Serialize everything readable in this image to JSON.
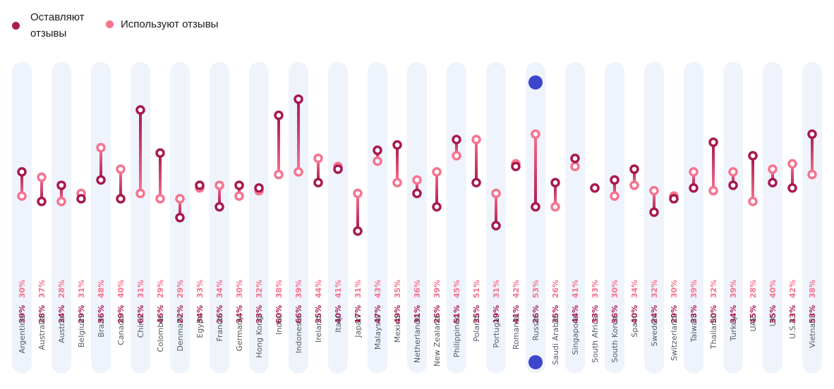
{
  "legend": {
    "leave": {
      "label_line1": "Оставляют",
      "label_line2": "отзывы",
      "color": "#a8184e"
    },
    "use": {
      "label": "Используют отзывы",
      "color": "#f7738f"
    }
  },
  "colors": {
    "column_bg": "#eef3fc",
    "leave": "#a8184e",
    "use": "#f7738f",
    "handle": "#3c46cc"
  },
  "chart_data": {
    "type": "dumbbell",
    "title": "",
    "xlabel": "",
    "ylabel": "",
    "ylim": [
      0,
      100
    ],
    "grid": false,
    "legend_position": "top-left",
    "series": [
      {
        "name": "Оставляют отзывы",
        "key": "leave"
      },
      {
        "name": "Используют отзывы",
        "key": "use"
      }
    ],
    "categories": [
      "Argentina",
      "Australia",
      "Austria",
      "Belgium",
      "Brazil",
      "Canada",
      "China",
      "Colombia",
      "Denmark",
      "Egypt",
      "France",
      "Germany",
      "Hong Kong",
      "India",
      "Indonesia",
      "Ireland",
      "Italy",
      "Japan",
      "Malaysia",
      "Mexico",
      "Netherlands",
      "New Zealand",
      "Philippines",
      "Poland",
      "Portugal",
      "Romania",
      "Russia",
      "Saudi Arabia",
      "Singapore",
      "South Africa",
      "South Korea",
      "Spain",
      "Sweden",
      "Switzerland",
      "Taiwan",
      "Thailand",
      "Turkey",
      "UAE",
      "UK",
      "U.S.A.",
      "Vietnam"
    ],
    "leave": [
      39,
      28,
      34,
      29,
      36,
      29,
      62,
      46,
      22,
      34,
      26,
      34,
      33,
      60,
      66,
      35,
      40,
      17,
      47,
      49,
      31,
      26,
      51,
      35,
      19,
      41,
      26,
      35,
      44,
      33,
      36,
      40,
      24,
      29,
      33,
      50,
      34,
      45,
      35,
      33,
      53
    ],
    "use": [
      30,
      37,
      28,
      31,
      48,
      40,
      31,
      29,
      29,
      33,
      34,
      30,
      32,
      38,
      39,
      44,
      41,
      31,
      43,
      35,
      36,
      39,
      45,
      51,
      31,
      42,
      53,
      26,
      41,
      33,
      30,
      34,
      32,
      30,
      39,
      32,
      39,
      28,
      40,
      42,
      38
    ],
    "leave_labels": [
      "39%",
      "28%",
      "34%",
      "29%",
      "36%",
      "29%",
      "62%",
      "46%",
      "22%",
      "34%",
      "26%",
      "34%",
      "33%",
      "60%",
      "66%",
      "35%",
      "40%",
      "17%",
      "47%",
      "49%",
      "31%",
      "26%",
      "51%",
      "35%",
      "19%",
      "41%",
      "26%",
      "35%",
      "44%",
      "33%",
      "36%",
      "40%",
      "24%",
      "29%",
      "33%",
      "50%",
      "34%",
      "45%",
      "35%",
      "33%",
      "53%"
    ],
    "use_labels": [
      "30%",
      "37%",
      "28%",
      "31%",
      "48%",
      "40%",
      "31%",
      "29%",
      "29%",
      "33%",
      "34%",
      "30%",
      "32%",
      "38%",
      "39%",
      "44%",
      "41%",
      "31%",
      "43%",
      "35%",
      "36%",
      "39%",
      "45%",
      "51%",
      "31%",
      "42%",
      "53%",
      "26%",
      "41%",
      "33%",
      "30%",
      "34%",
      "32%",
      "30%",
      "39%",
      "32%",
      "39%",
      "28%",
      "40%",
      "42%",
      "38%"
    ],
    "selected_category": "Russia"
  }
}
